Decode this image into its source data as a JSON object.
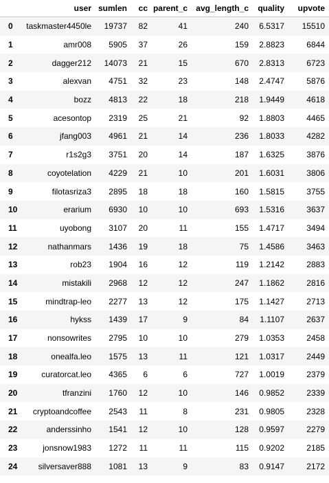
{
  "table": {
    "columns": [
      "",
      "user",
      "sumlen",
      "cc",
      "parent_c",
      "avg_length_c",
      "quality",
      "upvote"
    ],
    "rows": [
      [
        "0",
        "taskmaster4450le",
        "19737",
        "82",
        "41",
        "240",
        "6.5317",
        "15510"
      ],
      [
        "1",
        "amr008",
        "5905",
        "37",
        "26",
        "159",
        "2.8823",
        "6844"
      ],
      [
        "2",
        "dagger212",
        "14073",
        "21",
        "15",
        "670",
        "2.8313",
        "6723"
      ],
      [
        "3",
        "alexvan",
        "4751",
        "32",
        "23",
        "148",
        "2.4747",
        "5876"
      ],
      [
        "4",
        "bozz",
        "4813",
        "22",
        "18",
        "218",
        "1.9449",
        "4618"
      ],
      [
        "5",
        "acesontop",
        "2319",
        "25",
        "21",
        "92",
        "1.8803",
        "4465"
      ],
      [
        "6",
        "jfang003",
        "4961",
        "21",
        "14",
        "236",
        "1.8033",
        "4282"
      ],
      [
        "7",
        "r1s2g3",
        "3751",
        "20",
        "14",
        "187",
        "1.6325",
        "3876"
      ],
      [
        "8",
        "coyotelation",
        "4229",
        "21",
        "10",
        "201",
        "1.6031",
        "3806"
      ],
      [
        "9",
        "filotasriza3",
        "2895",
        "18",
        "18",
        "160",
        "1.5815",
        "3755"
      ],
      [
        "10",
        "erarium",
        "6930",
        "10",
        "10",
        "693",
        "1.5316",
        "3637"
      ],
      [
        "11",
        "uyobong",
        "3107",
        "20",
        "11",
        "155",
        "1.4717",
        "3494"
      ],
      [
        "12",
        "nathanmars",
        "1436",
        "19",
        "18",
        "75",
        "1.4586",
        "3463"
      ],
      [
        "13",
        "rob23",
        "1904",
        "16",
        "12",
        "119",
        "1.2142",
        "2883"
      ],
      [
        "14",
        "mistakili",
        "2968",
        "12",
        "12",
        "247",
        "1.1862",
        "2816"
      ],
      [
        "15",
        "mindtrap-leo",
        "2277",
        "13",
        "12",
        "175",
        "1.1427",
        "2713"
      ],
      [
        "16",
        "hykss",
        "1439",
        "17",
        "9",
        "84",
        "1.1107",
        "2637"
      ],
      [
        "17",
        "nonsowrites",
        "2795",
        "10",
        "10",
        "279",
        "1.0353",
        "2458"
      ],
      [
        "18",
        "onealfa.leo",
        "1575",
        "13",
        "11",
        "121",
        "1.0317",
        "2449"
      ],
      [
        "19",
        "curatorcat.leo",
        "4365",
        "6",
        "6",
        "727",
        "1.0019",
        "2379"
      ],
      [
        "20",
        "tfranzini",
        "1760",
        "12",
        "10",
        "146",
        "0.9852",
        "2339"
      ],
      [
        "21",
        "cryptoandcoffee",
        "2543",
        "11",
        "8",
        "231",
        "0.9805",
        "2328"
      ],
      [
        "22",
        "anderssinho",
        "1541",
        "12",
        "10",
        "128",
        "0.9597",
        "2279"
      ],
      [
        "23",
        "jonsnow1983",
        "1272",
        "11",
        "11",
        "115",
        "0.9202",
        "2185"
      ],
      [
        "24",
        "silversaver888",
        "1081",
        "13",
        "9",
        "83",
        "0.9147",
        "2172"
      ]
    ]
  },
  "colors": {
    "stripe": "#f5f5f5",
    "background": "#ffffff",
    "header_border": "#c8c8c8"
  }
}
